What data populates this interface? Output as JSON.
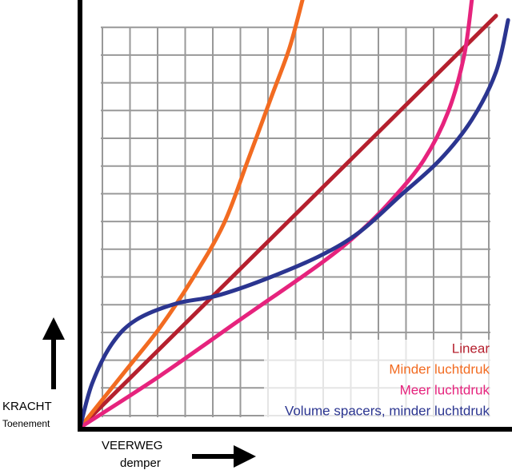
{
  "chart_data": {
    "type": "line",
    "y_label": "KRACHT",
    "y_sublabel": "Toenement",
    "x_label": "VEERWEG",
    "x_sublabel": "demper",
    "xlim": [
      0,
      100
    ],
    "ylim": [
      0,
      100
    ],
    "grid": true,
    "legend": "lower right",
    "series": [
      {
        "name": "Linear",
        "color": "#b5202e",
        "x": [
          0,
          96.3
        ],
        "values": [
          0,
          96.3
        ]
      },
      {
        "name": "Minder luchtdruk",
        "color": "#f26b21",
        "x": [
          0,
          11.1,
          18.5,
          25.9,
          33.3,
          38.9,
          44.4,
          48.5,
          51.5
        ],
        "values": [
          0,
          14.0,
          23.4,
          34.6,
          47.7,
          62.6,
          77.6,
          88.8,
          100
        ]
      },
      {
        "name": "Meer luchtdruk",
        "color": "#e6237d",
        "x": [
          0,
          18.5,
          37,
          55.6,
          64.8,
          72.2,
          79.6,
          85.2,
          88.9,
          90.7
        ],
        "values": [
          0,
          12.1,
          25.2,
          38.3,
          45.8,
          53.3,
          62.6,
          73.8,
          86.9,
          100
        ]
      },
      {
        "name": "Volume spacers, minder luchtdruk",
        "color": "#2b3590",
        "x": [
          0,
          2.8,
          7.4,
          13,
          22.2,
          31.5,
          42.6,
          55.6,
          64.8,
          74.1,
          83.3,
          90.7,
          96.3,
          99.1
        ],
        "values": [
          0,
          10.3,
          19.6,
          25.2,
          29,
          30.8,
          34.6,
          40.2,
          45.8,
          54.2,
          62.6,
          72,
          83.2,
          95.3
        ]
      }
    ]
  }
}
